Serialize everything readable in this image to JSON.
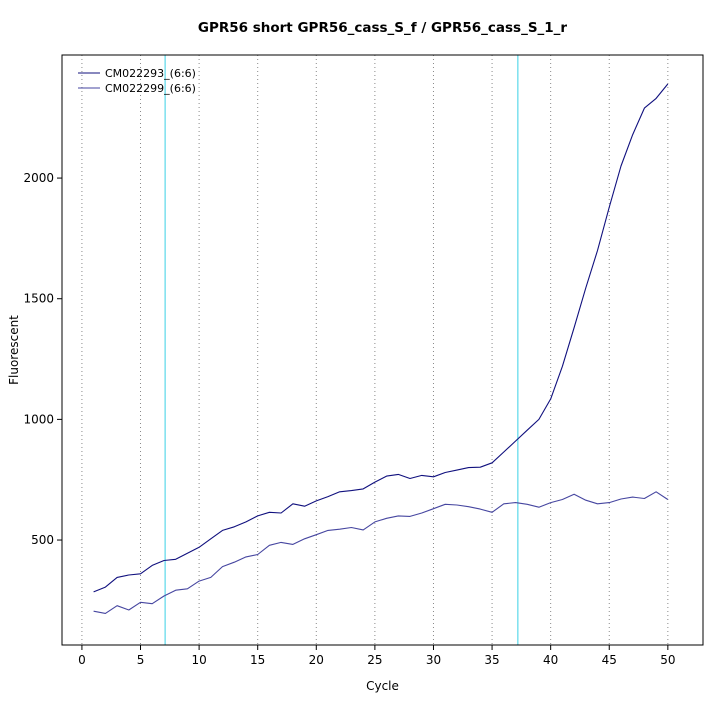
{
  "title": "GPR56 short GPR56_cass_S_f / GPR56_cass_S_1_r",
  "chart_data": {
    "type": "line",
    "title": "GPR56 short GPR56_cass_S_f / GPR56_cass_S_1_r",
    "xlabel": "Cycle",
    "ylabel": "Fluorescent",
    "x_ticks": [
      0,
      5,
      10,
      15,
      20,
      25,
      30,
      35,
      40,
      45,
      50
    ],
    "y_ticks": [
      500,
      1000,
      1500,
      2000
    ],
    "xlim": [
      -1.7,
      53
    ],
    "ylim": [
      65,
      2510
    ],
    "grid": {
      "vertical_dotted_at_x_ticks": true,
      "color": "#8a8a8a"
    },
    "vlines": [
      {
        "x": 7.1,
        "color": "#5ad8ea"
      },
      {
        "x": 37.2,
        "color": "#5ad8ea"
      }
    ],
    "x": [
      1,
      2,
      3,
      4,
      5,
      6,
      7,
      8,
      9,
      10,
      11,
      12,
      13,
      14,
      15,
      16,
      17,
      18,
      19,
      20,
      21,
      22,
      23,
      24,
      25,
      26,
      27,
      28,
      29,
      30,
      31,
      32,
      33,
      34,
      35,
      36,
      37,
      38,
      39,
      40,
      41,
      42,
      43,
      44,
      45,
      46,
      47,
      48,
      49,
      50
    ],
    "series": [
      {
        "name": "CM022293_(6:6)",
        "color": "#10107e",
        "values": [
          285,
          305,
          345,
          355,
          360,
          395,
          415,
          420,
          445,
          470,
          505,
          540,
          555,
          575,
          600,
          615,
          612,
          650,
          640,
          662,
          680,
          700,
          705,
          712,
          740,
          765,
          772,
          755,
          768,
          762,
          780,
          790,
          800,
          802,
          820,
          865,
          910,
          955,
          1000,
          1085,
          1220,
          1380,
          1545,
          1700,
          1880,
          2050,
          2180,
          2290,
          2330,
          2390
        ]
      },
      {
        "name": "CM022299_(6:6)",
        "color": "#4646a0",
        "values": [
          205,
          196,
          228,
          210,
          242,
          236,
          268,
          292,
          298,
          330,
          345,
          390,
          408,
          430,
          440,
          478,
          490,
          482,
          505,
          522,
          540,
          545,
          552,
          542,
          575,
          590,
          600,
          598,
          612,
          630,
          648,
          645,
          638,
          628,
          615,
          650,
          655,
          648,
          636,
          655,
          668,
          690,
          665,
          650,
          655,
          670,
          678,
          672,
          700,
          668
        ]
      }
    ],
    "legend": {
      "position": "top-left"
    }
  }
}
